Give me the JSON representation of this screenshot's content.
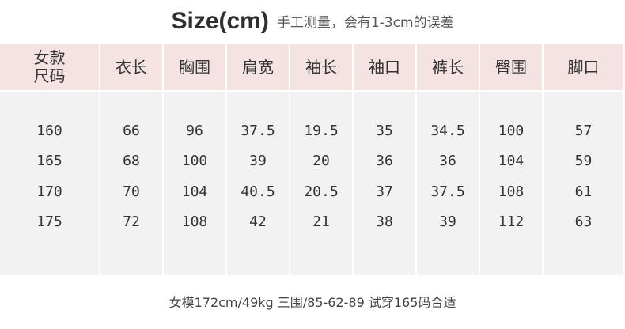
{
  "title": {
    "main": "Size(cm)",
    "sub": "手工测量，会有1-3cm的误差"
  },
  "table": {
    "columns": [
      {
        "header_lines": [
          "女款",
          "尺码"
        ],
        "values": [
          "160",
          "165",
          "170",
          "175"
        ]
      },
      {
        "header": "衣长",
        "values": [
          "66",
          "68",
          "70",
          "72"
        ]
      },
      {
        "header": "胸围",
        "values": [
          "96",
          "100",
          "104",
          "108"
        ]
      },
      {
        "header": "肩宽",
        "values": [
          "37.5",
          "39",
          "40.5",
          "42"
        ]
      },
      {
        "header": "袖长",
        "values": [
          "19.5",
          "20",
          "20.5",
          "21"
        ]
      },
      {
        "header": "袖口",
        "values": [
          "35",
          "36",
          "37",
          "38"
        ]
      },
      {
        "header": "裤长",
        "values": [
          "34.5",
          "36",
          "37.5",
          "39"
        ]
      },
      {
        "header": "臀围",
        "values": [
          "100",
          "104",
          "108",
          "112"
        ]
      },
      {
        "header": "脚口",
        "values": [
          "57",
          "59",
          "61",
          "63"
        ]
      }
    ]
  },
  "footer": "女模172cm/49kg  三围/85-62-89  试穿165码合适",
  "colors": {
    "header_bg": "#f5e3e3",
    "body_bg": "#f2f2f2"
  }
}
